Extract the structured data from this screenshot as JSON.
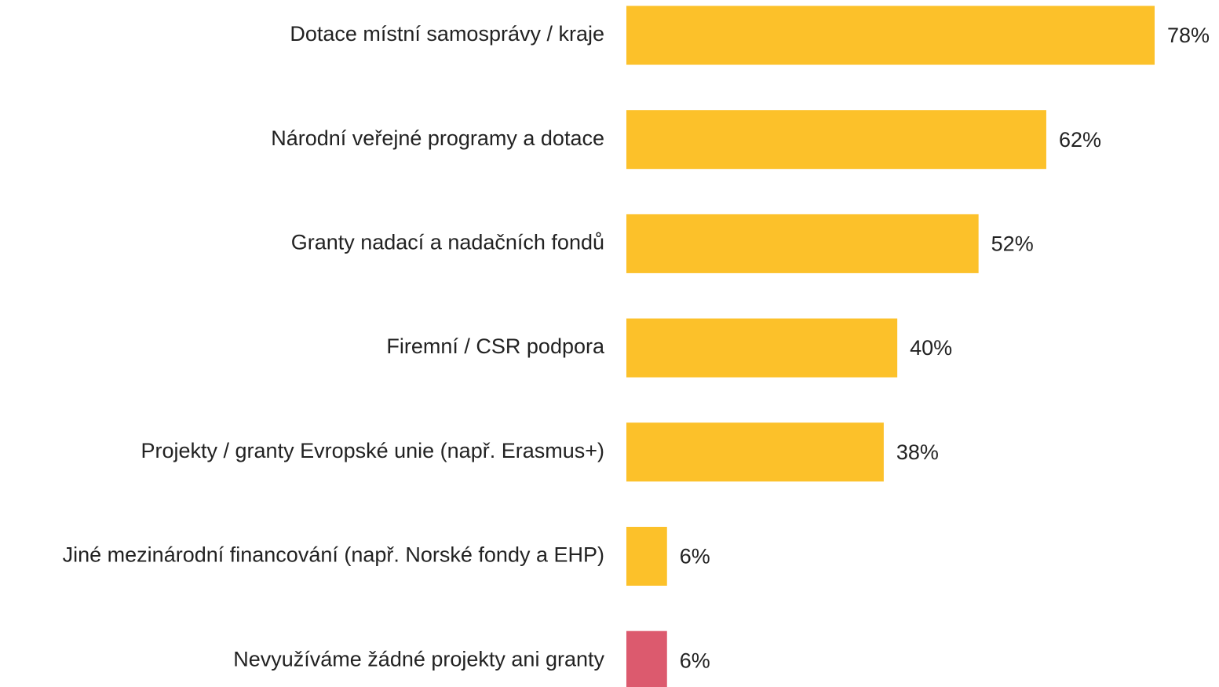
{
  "chart_data": {
    "type": "barh",
    "categories": [
      "Dotace místní samosprávy / kraje",
      "Národní veřejné programy a dotace",
      "Granty nadací a nadačních fondů",
      "Firemní / CSR podpora",
      "Projekty / granty Evropské unie (např. Erasmus+)",
      "Jiné mezinárodní financování (např. Norské fondy a EHP)",
      "Nevyužíváme žádné projekty ani granty"
    ],
    "values": [
      78,
      62,
      52,
      40,
      38,
      6,
      6
    ],
    "value_labels": [
      "78%",
      "62%",
      "52%",
      "40%",
      "38%",
      "6%",
      "6%"
    ],
    "colors": [
      "#fcc12a",
      "#fcc12a",
      "#fcc12a",
      "#fcc12a",
      "#fcc12a",
      "#fcc12a",
      "#dc5a6e"
    ]
  }
}
